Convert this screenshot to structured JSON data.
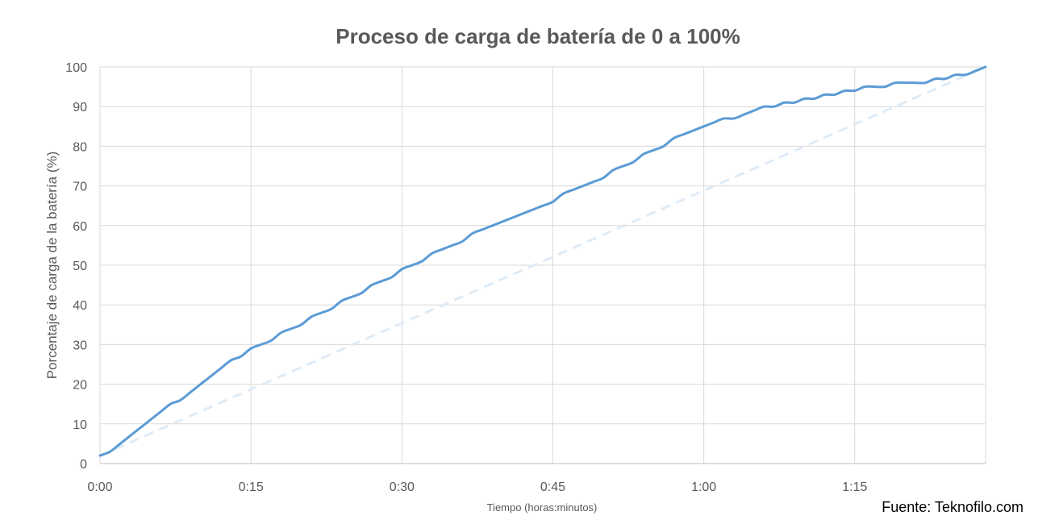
{
  "chart_data": {
    "type": "line",
    "title": "Proceso de carga de batería de 0 a 100%",
    "xlabel": "Tiempo (horas:minutos)",
    "ylabel": "Porcentaje de carga de la batería (%)",
    "x_unit": "minutes",
    "xlim": [
      0,
      88
    ],
    "ylim": [
      0,
      100
    ],
    "x_ticks": [
      0,
      15,
      30,
      45,
      60,
      75
    ],
    "x_tick_labels": [
      "0:00",
      "0:15",
      "0:30",
      "0:45",
      "1:00",
      "1:15"
    ],
    "y_ticks": [
      0,
      10,
      20,
      30,
      40,
      50,
      60,
      70,
      80,
      90,
      100
    ],
    "grid": true,
    "legend": "none",
    "series": [
      {
        "color": "#5b9bd5",
        "style": "solid",
        "x": [
          0,
          1,
          2,
          3,
          4,
          5,
          6,
          7,
          8,
          9,
          10,
          11,
          12,
          13,
          14,
          15,
          16,
          17,
          18,
          19,
          20,
          21,
          22,
          23,
          24,
          25,
          26,
          27,
          28,
          29,
          30,
          31,
          32,
          33,
          34,
          35,
          36,
          37,
          38,
          39,
          40,
          41,
          42,
          43,
          44,
          45,
          46,
          47,
          48,
          49,
          50,
          51,
          52,
          53,
          54,
          55,
          56,
          57,
          58,
          59,
          60,
          61,
          62,
          63,
          64,
          65,
          66,
          67,
          68,
          69,
          70,
          71,
          72,
          73,
          74,
          75,
          76,
          77,
          78,
          79,
          80,
          81,
          82,
          83,
          84,
          85,
          86,
          87,
          88
        ],
        "values": [
          2,
          3,
          5,
          7,
          9,
          11,
          13,
          15,
          16,
          18,
          20,
          22,
          24,
          26,
          27,
          29,
          30,
          31,
          33,
          34,
          35,
          37,
          38,
          39,
          41,
          42,
          43,
          45,
          46,
          47,
          49,
          50,
          51,
          53,
          54,
          55,
          56,
          58,
          59,
          60,
          61,
          62,
          63,
          64,
          65,
          66,
          68,
          69,
          70,
          71,
          72,
          74,
          75,
          76,
          78,
          79,
          80,
          82,
          83,
          84,
          85,
          86,
          87,
          87,
          88,
          89,
          90,
          90,
          91,
          91,
          92,
          92,
          93,
          93,
          94,
          94,
          95,
          95,
          95,
          96,
          96,
          96,
          96,
          97,
          97,
          98,
          98,
          99,
          100
        ]
      },
      {
        "color": "#deebf7",
        "style": "dashed",
        "x": [
          0,
          88
        ],
        "values": [
          2,
          100
        ]
      }
    ]
  },
  "source": "Fuente: Teknofilo.com"
}
